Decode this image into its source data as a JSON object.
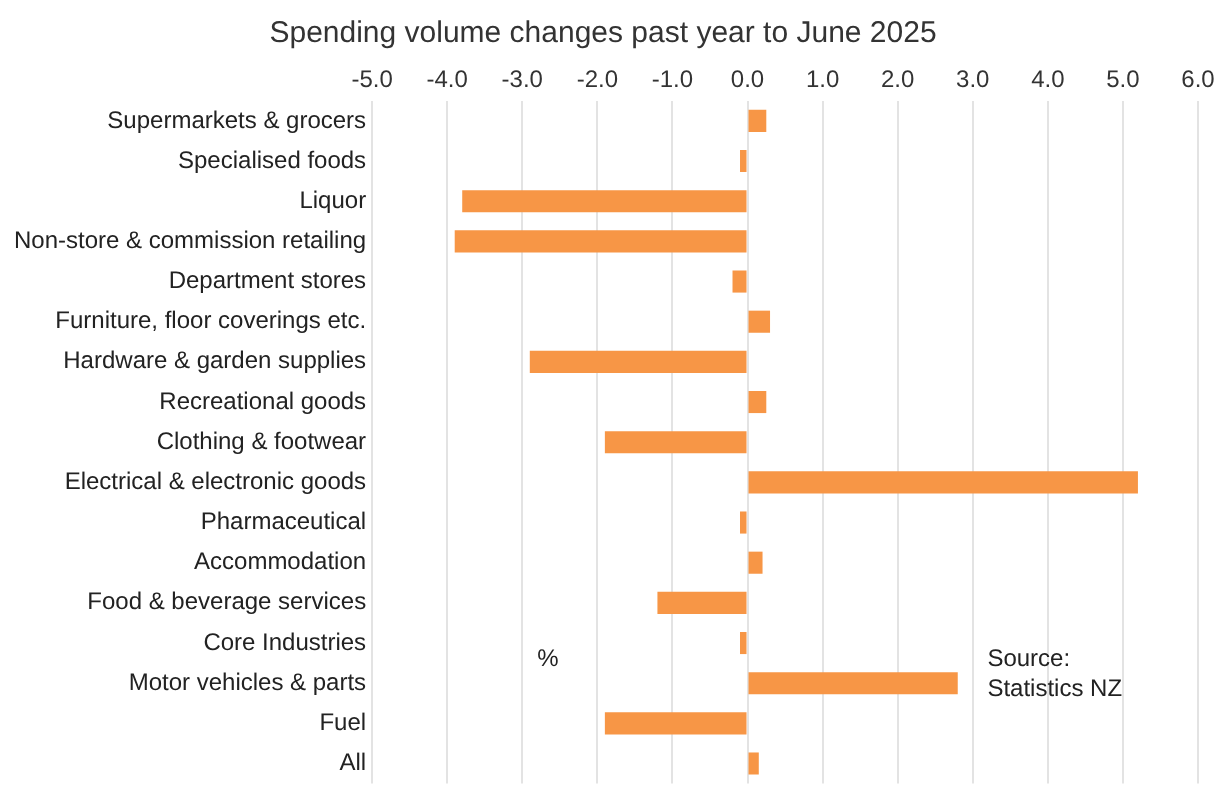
{
  "chart_data": {
    "type": "bar",
    "orientation": "horizontal",
    "title": "Spending volume changes past year to June 2025",
    "categories": [
      "Supermarkets & grocers",
      "Specialised foods",
      "Liquor",
      "Non-store & commission retailing",
      "Department stores",
      "Furniture, floor coverings etc.",
      "Hardware & garden supplies",
      "Recreational goods",
      "Clothing & footwear",
      "Electrical & electronic goods",
      "Pharmaceutical",
      "Accommodation",
      "Food & beverage services",
      "Core Industries",
      "Motor vehicles & parts",
      "Fuel",
      "All"
    ],
    "values": [
      0.25,
      -0.1,
      -3.8,
      -3.9,
      -0.2,
      0.3,
      -2.9,
      0.25,
      -1.9,
      5.2,
      -0.1,
      0.2,
      -1.2,
      -0.1,
      2.8,
      -1.9,
      0.15
    ],
    "color": "#f79646",
    "xlim": [
      -5,
      6
    ],
    "xticks": [
      {
        "value": -5,
        "label": "-5.0"
      },
      {
        "value": -4,
        "label": "-4.0"
      },
      {
        "value": -3,
        "label": "-3.0"
      },
      {
        "value": -2,
        "label": "-2.0"
      },
      {
        "value": -1,
        "label": "-1.0"
      },
      {
        "value": 0,
        "label": "0.0"
      },
      {
        "value": 1,
        "label": "1.0"
      },
      {
        "value": 2,
        "label": "2.0"
      },
      {
        "value": 3,
        "label": "3.0"
      },
      {
        "value": 4,
        "label": "4.0"
      },
      {
        "value": 5,
        "label": "5.0"
      },
      {
        "value": 6,
        "label": "6.0"
      }
    ],
    "grid": "x",
    "annotations": [
      "%",
      "Source:\nStatistics NZ"
    ]
  }
}
